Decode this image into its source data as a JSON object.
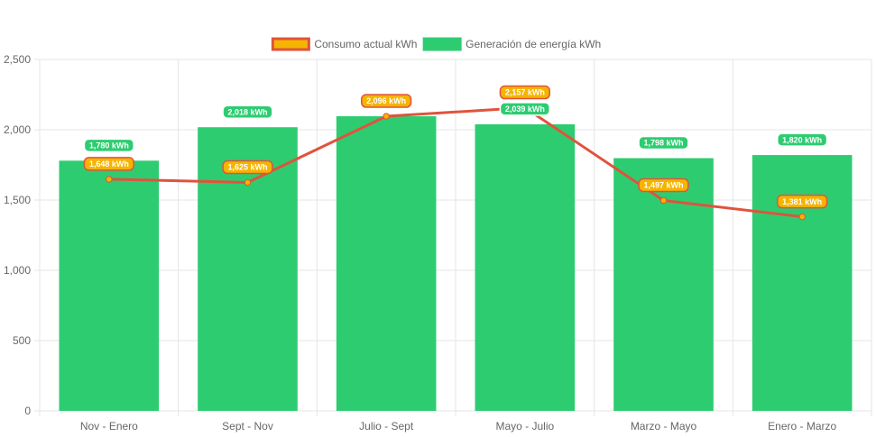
{
  "chart_data": {
    "type": "bar",
    "categories": [
      "Nov - Enero",
      "Sept - Nov",
      "Julio - Sept",
      "Mayo - Julio",
      "Marzo - Mayo",
      "Enero - Marzo"
    ],
    "series": [
      {
        "name": "Consumo actual kWh",
        "render": "line",
        "values": [
          1648,
          1625,
          2096,
          2157,
          1497,
          1381
        ],
        "labels": [
          "1,648 kWh",
          "1,625 kWh",
          "2,096 kWh",
          "2,157 kWh",
          "1,497 kWh",
          "1,381 kWh"
        ],
        "line_color": "#e0533c",
        "point_color": "#f5b400",
        "label_bg": "#f5b400",
        "label_border": "#e0533c"
      },
      {
        "name": "Generación de energía kWh",
        "render": "bar",
        "values": [
          1780,
          2018,
          2096,
          2039,
          1798,
          1820
        ],
        "labels": [
          "1,780 kWh",
          "2,018 kWh",
          "2,096 kWh",
          "2,039 kWh",
          "1,798 kWh",
          "1,820 kWh"
        ],
        "bar_color": "#2ecc71",
        "label_bg": "#2ecc71",
        "label_border": "#ffffff"
      }
    ],
    "y_ticks": [
      "0",
      "500",
      "1,000",
      "1,500",
      "2,000",
      "2,500"
    ],
    "ylim": [
      0,
      2500
    ],
    "grid": true,
    "legend_position": "top-center"
  },
  "colors": {
    "grid": "#e5e5e5",
    "axis_text": "#666666"
  }
}
